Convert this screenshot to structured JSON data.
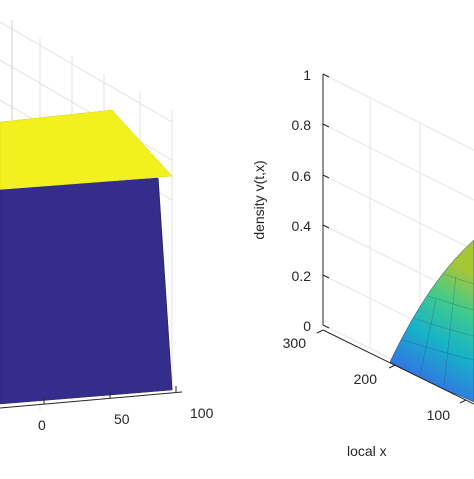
{
  "chart_data": [
    {
      "type": "surface",
      "panel": "left",
      "x_ticks": [
        "0",
        "50",
        "100"
      ],
      "colors": {
        "top": "#f2f01f",
        "front": "#352d8c",
        "edge": "#1a1a1a"
      }
    },
    {
      "type": "surface",
      "panel": "right",
      "zlabel": "density v(t,x)",
      "xlabel": "local x",
      "z_ticks": [
        "0",
        "0.2",
        "0.4",
        "0.6",
        "0.8",
        "1"
      ],
      "zlim": [
        0,
        1
      ],
      "x_ticks": [
        "300",
        "200",
        "100"
      ],
      "colormap": [
        "#3e26a8",
        "#2f7ce0",
        "#18b2c8",
        "#3fca8e",
        "#a7c637",
        "#f9e319"
      ]
    }
  ]
}
